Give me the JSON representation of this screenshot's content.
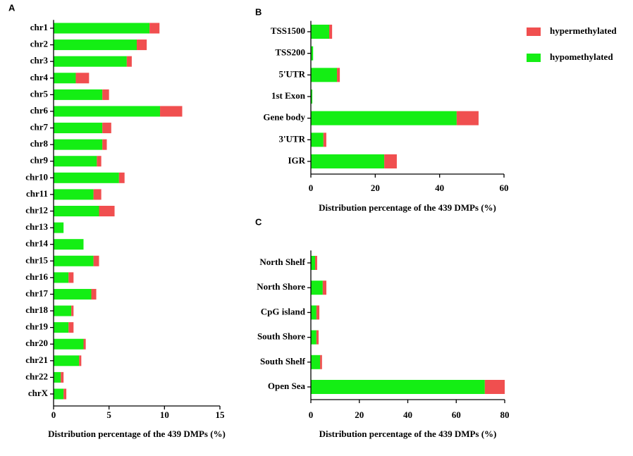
{
  "chart_data": [
    {
      "type": "bar",
      "orientation": "horizontal",
      "stacked": true,
      "panel_label": "A",
      "xlabel": "Distribution percentage of the 439 DMPs (%)",
      "categories": [
        "chr1",
        "chr2",
        "chr3",
        "chr4",
        "chr5",
        "chr6",
        "chr7",
        "chr8",
        "chr9",
        "chr10",
        "chr11",
        "chr12",
        "chr13",
        "chr14",
        "chr15",
        "chr16",
        "chr17",
        "chr18",
        "chr19",
        "chr20",
        "chr21",
        "chr22",
        "chrX"
      ],
      "series": [
        {
          "color": "#14ee14",
          "values": [
            8.65,
            7.5,
            6.6,
            2.0,
            4.4,
            9.6,
            4.4,
            4.4,
            3.9,
            5.9,
            3.6,
            4.1,
            0.9,
            2.7,
            3.6,
            1.35,
            3.4,
            1.6,
            1.35,
            2.7,
            2.3,
            0.65,
            0.9
          ]
        },
        {
          "color": "#f04f4f",
          "values": [
            0.9,
            0.9,
            0.45,
            1.2,
            0.6,
            2.0,
            0.8,
            0.4,
            0.4,
            0.5,
            0.7,
            1.4,
            0,
            0,
            0.5,
            0.45,
            0.45,
            0.2,
            0.45,
            0.2,
            0.2,
            0.25,
            0.25
          ]
        }
      ],
      "xlim": [
        0,
        15
      ],
      "xticks": [
        0,
        5,
        10,
        15
      ]
    },
    {
      "type": "bar",
      "orientation": "horizontal",
      "stacked": true,
      "panel_label": "B",
      "xlabel": "Distribution percentage of the 439 DMPs (%)",
      "categories": [
        "TSS1500",
        "TSS200",
        "5'UTR",
        "1st Exon",
        "Gene body",
        "3'UTR",
        "IGR"
      ],
      "series": [
        {
          "name": "hypomethylated",
          "color": "#14ee14",
          "values": [
            5.7,
            0.7,
            8.1,
            0.45,
            45.3,
            3.9,
            22.8
          ]
        },
        {
          "name": "hypermethylated",
          "color": "#f04f4f",
          "values": [
            0.9,
            0,
            0.9,
            0,
            6.8,
            0.9,
            3.9
          ]
        }
      ],
      "xlim": [
        0,
        60
      ],
      "xticks": [
        0,
        20,
        40,
        60
      ],
      "legend": "top-right"
    },
    {
      "type": "bar",
      "orientation": "horizontal",
      "stacked": true,
      "panel_label": "C",
      "xlabel": "Distribution percentage of the 439 DMPs (%)",
      "categories": [
        "North Shelf",
        "North Shore",
        "CpG island",
        "South Shore",
        "South Shelf",
        "Open Sea"
      ],
      "series": [
        {
          "color": "#14ee14",
          "values": [
            1.75,
            4.9,
            2.3,
            2.3,
            3.8,
            71.8
          ]
        },
        {
          "color": "#f04f4f",
          "values": [
            0.85,
            1.5,
            1.2,
            0.9,
            0.8,
            8.2
          ]
        }
      ],
      "xlim": [
        0,
        80
      ],
      "xticks": [
        0,
        20,
        40,
        60,
        80
      ]
    }
  ]
}
